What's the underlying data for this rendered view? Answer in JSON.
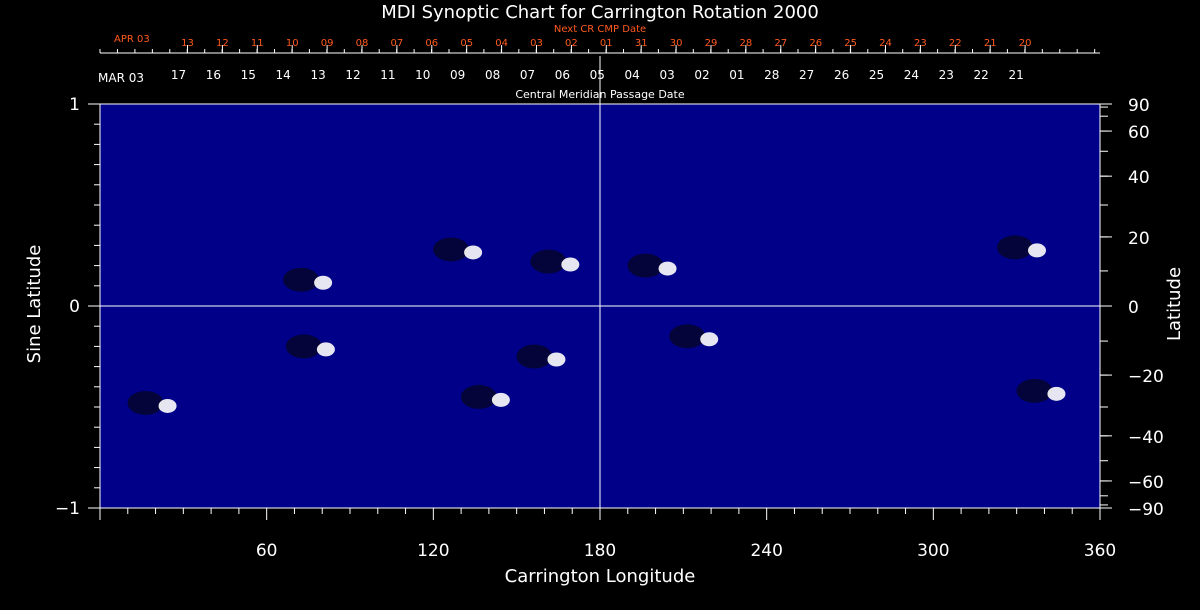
{
  "chart_data": {
    "type": "heatmap",
    "title": "MDI Synoptic Chart for Carrington Rotation 2000",
    "top_axis": {
      "label": "Next CR CMP Date",
      "start_label": "APR 03",
      "ticks": [
        "13",
        "12",
        "11",
        "10",
        "09",
        "08",
        "07",
        "06",
        "05",
        "04",
        "03",
        "02",
        "01",
        "31",
        "30",
        "29",
        "28",
        "27",
        "26",
        "25",
        "24",
        "23",
        "22",
        "21",
        "20"
      ]
    },
    "second_axis": {
      "label": "Central Meridian Passage Date",
      "start_label": "MAR 03",
      "ticks": [
        "17",
        "16",
        "15",
        "14",
        "13",
        "12",
        "11",
        "10",
        "09",
        "08",
        "07",
        "06",
        "05",
        "04",
        "03",
        "02",
        "01",
        "28",
        "27",
        "26",
        "25",
        "24",
        "23",
        "22",
        "21"
      ]
    },
    "xlabel": "Carrington Longitude",
    "xlim": [
      0,
      360
    ],
    "x_ticks": [
      60,
      120,
      180,
      240,
      300,
      360
    ],
    "ylabel": "Sine Latitude",
    "ylim": [
      -1,
      1
    ],
    "y_ticks": [
      "1",
      "0",
      "−1"
    ],
    "y2label": "Latitude",
    "y2_ticks": [
      90,
      60,
      40,
      20,
      0,
      -20,
      -40,
      -60,
      -90
    ],
    "reference_lines": {
      "longitude": 180,
      "sine_latitude": 0
    },
    "colormap": [
      "#000040",
      "#3a0a6a",
      "#c01a00",
      "#ff5000",
      "#ff8a1a",
      "#ffd060",
      "#ffffff"
    ],
    "features": [
      {
        "longitude": 76,
        "sine_latitude": 0.13,
        "type": "active-region"
      },
      {
        "longitude": 130,
        "sine_latitude": 0.28,
        "type": "active-region"
      },
      {
        "longitude": 165,
        "sine_latitude": 0.22,
        "type": "active-region"
      },
      {
        "longitude": 200,
        "sine_latitude": 0.2,
        "type": "active-region"
      },
      {
        "longitude": 333,
        "sine_latitude": 0.29,
        "type": "active-region"
      },
      {
        "longitude": 77,
        "sine_latitude": -0.2,
        "type": "active-region"
      },
      {
        "longitude": 160,
        "sine_latitude": -0.25,
        "type": "active-region"
      },
      {
        "longitude": 215,
        "sine_latitude": -0.15,
        "type": "active-region"
      },
      {
        "longitude": 140,
        "sine_latitude": -0.45,
        "type": "active-region"
      },
      {
        "longitude": 340,
        "sine_latitude": -0.42,
        "type": "active-region"
      },
      {
        "longitude": 20,
        "sine_latitude": -0.48,
        "type": "active-region"
      }
    ]
  }
}
